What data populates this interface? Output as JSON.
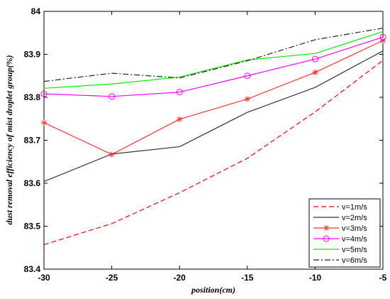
{
  "chart_data": {
    "type": "line",
    "xlabel": "position(cm)",
    "ylabel": "dust removal efficiency of mist droplet group(%)",
    "xlim": [
      -30,
      -5
    ],
    "ylim": [
      83.4,
      84
    ],
    "xticks": [
      "-30",
      "-25",
      "-20",
      "-15",
      "-10",
      "-5"
    ],
    "yticks": [
      "83.4",
      "83.5",
      "83.6",
      "83.7",
      "83.8",
      "83.9",
      "84"
    ],
    "x": [
      -30,
      -25,
      -20,
      -15,
      -10,
      -5
    ],
    "grid": false,
    "legend_position": "bottom-right",
    "series": [
      {
        "name": "v=1m/s",
        "color": "#ff0000",
        "style": "dashed",
        "marker": "none",
        "values": [
          83.457,
          83.506,
          83.578,
          83.658,
          83.766,
          83.886
        ]
      },
      {
        "name": "v=2m/s",
        "color": "#333333",
        "style": "solid",
        "marker": "none",
        "values": [
          83.604,
          83.668,
          83.685,
          83.765,
          83.823,
          83.908
        ]
      },
      {
        "name": "v=3m/s",
        "color": "#ff3333",
        "style": "solid",
        "marker": "asterisk",
        "values": [
          83.741,
          83.667,
          83.749,
          83.796,
          83.858,
          83.932
        ]
      },
      {
        "name": "v=4m/s",
        "color": "#ff00ff",
        "style": "solid",
        "marker": "circle",
        "values": [
          83.808,
          83.802,
          83.812,
          83.85,
          83.889,
          83.94
        ]
      },
      {
        "name": "v=5m/s",
        "color": "#00ee00",
        "style": "solid",
        "marker": "none",
        "values": [
          83.821,
          83.831,
          83.847,
          83.887,
          83.902,
          83.953
        ]
      },
      {
        "name": "v=6m/s",
        "color": "#222222",
        "style": "dashdot",
        "marker": "none",
        "values": [
          83.837,
          83.856,
          83.845,
          83.885,
          83.934,
          83.961
        ]
      }
    ]
  }
}
